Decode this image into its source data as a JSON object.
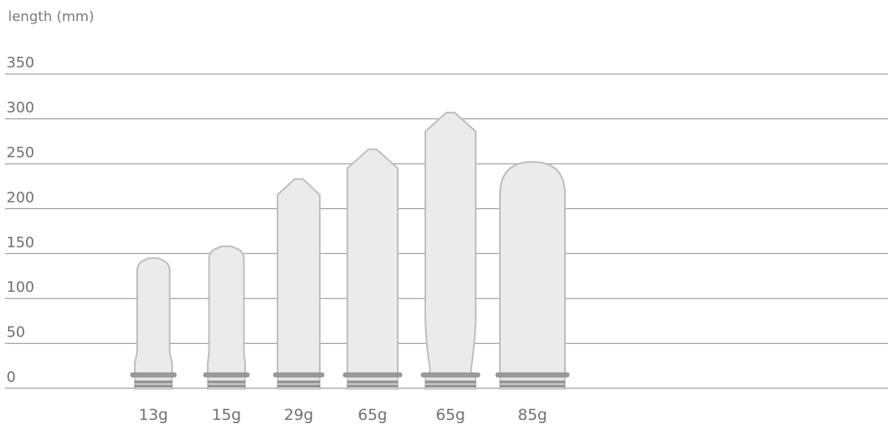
{
  "chart_data": {
    "type": "bar",
    "ylabel": "length (mm)",
    "yticks": [
      0,
      50,
      100,
      150,
      200,
      250,
      300,
      350
    ],
    "ylim": [
      0,
      350
    ],
    "grid": true,
    "categories": [
      "13g",
      "15g",
      "29g",
      "65g",
      "65g",
      "85g"
    ],
    "values": [
      145,
      158,
      233,
      266,
      307,
      252
    ],
    "bar_style": "bottle preforms"
  }
}
